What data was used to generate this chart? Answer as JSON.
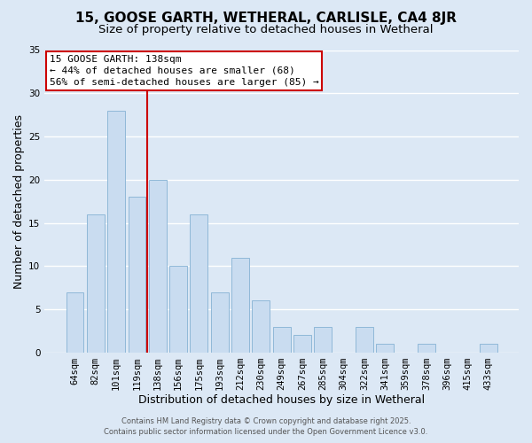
{
  "title": "15, GOOSE GARTH, WETHERAL, CARLISLE, CA4 8JR",
  "subtitle": "Size of property relative to detached houses in Wetheral",
  "xlabel": "Distribution of detached houses by size in Wetheral",
  "ylabel": "Number of detached properties",
  "bar_labels": [
    "64sqm",
    "82sqm",
    "101sqm",
    "119sqm",
    "138sqm",
    "156sqm",
    "175sqm",
    "193sqm",
    "212sqm",
    "230sqm",
    "249sqm",
    "267sqm",
    "285sqm",
    "304sqm",
    "322sqm",
    "341sqm",
    "359sqm",
    "378sqm",
    "396sqm",
    "415sqm",
    "433sqm"
  ],
  "bar_values": [
    7,
    16,
    28,
    18,
    20,
    10,
    16,
    7,
    11,
    6,
    3,
    2,
    3,
    0,
    3,
    1,
    0,
    1,
    0,
    0,
    1
  ],
  "bar_color": "#c9dcf0",
  "bar_edge_color": "#8fb8d8",
  "vline_color": "#cc0000",
  "annotation_title": "15 GOOSE GARTH: 138sqm",
  "annotation_line1": "← 44% of detached houses are smaller (68)",
  "annotation_line2": "56% of semi-detached houses are larger (85) →",
  "annotation_box_color": "#ffffff",
  "annotation_box_edge_color": "#cc0000",
  "ylim": [
    0,
    35
  ],
  "yticks": [
    0,
    5,
    10,
    15,
    20,
    25,
    30,
    35
  ],
  "background_color": "#dce8f5",
  "plot_bg_color": "#dce8f5",
  "grid_color": "#ffffff",
  "footer1": "Contains HM Land Registry data © Crown copyright and database right 2025.",
  "footer2": "Contains public sector information licensed under the Open Government Licence v3.0.",
  "title_fontsize": 11,
  "subtitle_fontsize": 9.5,
  "xlabel_fontsize": 9,
  "ylabel_fontsize": 9,
  "tick_fontsize": 7.5,
  "annotation_fontsize": 8,
  "footer_fontsize": 6
}
